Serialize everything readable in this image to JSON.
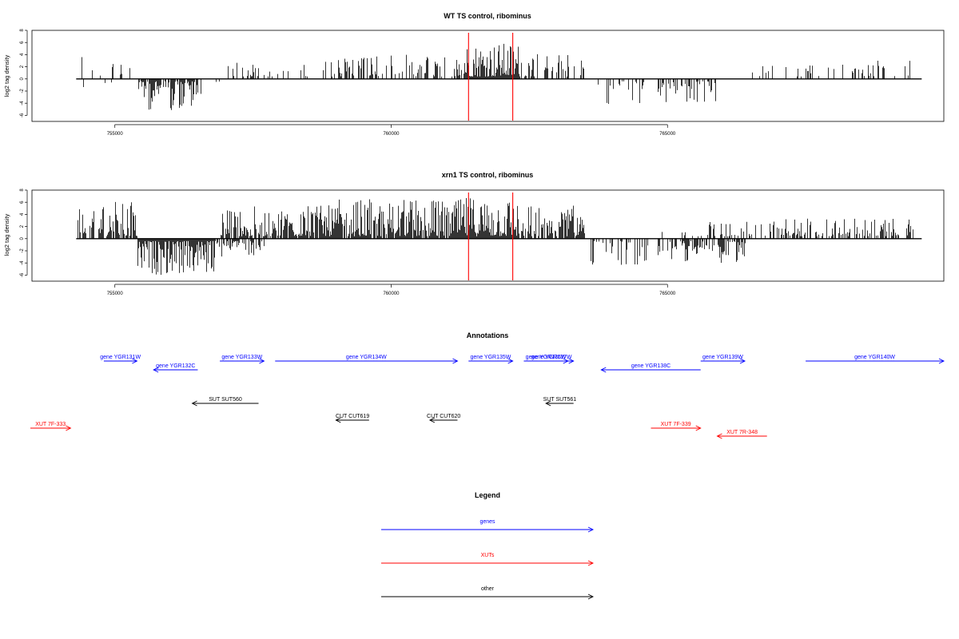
{
  "colors": {
    "gene": "#0000ff",
    "xut": "#ff0000",
    "other": "#000000",
    "marker": "#ff0000"
  },
  "chart_data": [
    {
      "type": "bar",
      "title": "WT TS control, ribominus",
      "ylabel": "log2 tag density",
      "xlim": [
        753500,
        770000
      ],
      "ylim": [
        -7,
        8
      ],
      "xticks": [
        755000,
        760000,
        765000
      ],
      "yticks": [
        8,
        6,
        4,
        2,
        0,
        -2,
        -4,
        -6
      ],
      "markers": [
        761400,
        762200
      ],
      "segments": [
        {
          "from": 754300,
          "to": 755300,
          "density": 0.18,
          "sign": 1,
          "max": 4.4
        },
        {
          "from": 754300,
          "to": 755300,
          "density": 0.06,
          "sign": -1,
          "max": 2.5
        },
        {
          "from": 755400,
          "to": 756500,
          "density": 0.8,
          "sign": -1,
          "max": 5.2
        },
        {
          "from": 756500,
          "to": 756900,
          "density": 0.15,
          "sign": -1,
          "max": 2.5
        },
        {
          "from": 756900,
          "to": 757600,
          "density": 0.3,
          "sign": 1,
          "max": 3.0
        },
        {
          "from": 757600,
          "to": 759000,
          "density": 0.2,
          "sign": 1,
          "max": 3.0
        },
        {
          "from": 759000,
          "to": 761300,
          "density": 0.45,
          "sign": 1,
          "max": 4.1
        },
        {
          "from": 761300,
          "to": 762300,
          "density": 1.0,
          "sign": 1,
          "max": 6.0
        },
        {
          "from": 762300,
          "to": 763500,
          "density": 0.4,
          "sign": 1,
          "max": 4.1
        },
        {
          "from": 763700,
          "to": 764600,
          "density": 0.35,
          "sign": -1,
          "max": 4.5
        },
        {
          "from": 764800,
          "to": 765900,
          "density": 0.45,
          "sign": -1,
          "max": 4.0
        },
        {
          "from": 766500,
          "to": 768300,
          "density": 0.12,
          "sign": 1,
          "max": 2.4
        },
        {
          "from": 768300,
          "to": 769400,
          "density": 0.3,
          "sign": 1,
          "max": 3.0
        }
      ]
    },
    {
      "type": "bar",
      "title": "xrn1 TS control, ribominus",
      "ylabel": "log2 tag density",
      "xlim": [
        753500,
        770000
      ],
      "ylim": [
        -7,
        8
      ],
      "xticks": [
        755000,
        760000,
        765000
      ],
      "yticks": [
        8,
        6,
        4,
        2,
        0,
        -2,
        -4,
        -6
      ],
      "markers": [
        761400,
        762200
      ],
      "segments": [
        {
          "from": 754300,
          "to": 755400,
          "density": 0.7,
          "sign": 1,
          "max": 6.2
        },
        {
          "from": 755400,
          "to": 756800,
          "density": 1.0,
          "sign": -1,
          "max": 6.0
        },
        {
          "from": 756800,
          "to": 757700,
          "density": 0.6,
          "sign": -1,
          "max": 3.0
        },
        {
          "from": 756900,
          "to": 759000,
          "density": 0.8,
          "sign": 1,
          "max": 5.5
        },
        {
          "from": 759000,
          "to": 761300,
          "density": 0.9,
          "sign": 1,
          "max": 6.5
        },
        {
          "from": 761300,
          "to": 762300,
          "density": 1.0,
          "sign": 1,
          "max": 7.0
        },
        {
          "from": 762300,
          "to": 763500,
          "density": 0.8,
          "sign": 1,
          "max": 5.5
        },
        {
          "from": 763600,
          "to": 764700,
          "density": 0.5,
          "sign": -1,
          "max": 4.5
        },
        {
          "from": 764800,
          "to": 766400,
          "density": 0.55,
          "sign": -1,
          "max": 4.0
        },
        {
          "from": 764800,
          "to": 767000,
          "density": 0.25,
          "sign": 1,
          "max": 3.0
        },
        {
          "from": 767000,
          "to": 769500,
          "density": 0.5,
          "sign": 1,
          "max": 3.5
        }
      ]
    }
  ],
  "annotations": {
    "title": "Annotations",
    "items": [
      {
        "label": "gene YGR131W",
        "start": 754800,
        "end": 755400,
        "row": 0,
        "type": "gene",
        "strand": "+"
      },
      {
        "label": "gene YGR132C",
        "start": 755700,
        "end": 756500,
        "row": 1,
        "type": "gene",
        "strand": "-"
      },
      {
        "label": "gene YGR133W",
        "start": 756900,
        "end": 757700,
        "row": 0,
        "type": "gene",
        "strand": "+"
      },
      {
        "label": "gene YGR134W",
        "start": 757900,
        "end": 761200,
        "row": 0,
        "type": "gene",
        "strand": "+"
      },
      {
        "label": "gene YGR135W",
        "start": 761400,
        "end": 762200,
        "row": 0,
        "type": "gene",
        "strand": "+"
      },
      {
        "label": "gene YGR136W",
        "start": 762400,
        "end": 763200,
        "row": 0,
        "type": "gene",
        "strand": "+"
      },
      {
        "label": "gene YGR137W",
        "start": 762500,
        "end": 763300,
        "row": 0,
        "type": "gene",
        "strand": "+"
      },
      {
        "label": "gene YGR138C",
        "start": 763800,
        "end": 765600,
        "row": 1,
        "type": "gene",
        "strand": "-"
      },
      {
        "label": "gene YGR139W",
        "start": 765600,
        "end": 766400,
        "row": 0,
        "type": "gene",
        "strand": "+"
      },
      {
        "label": "gene YGR140W",
        "start": 767500,
        "end": 770000,
        "row": 0,
        "type": "gene",
        "strand": "+"
      },
      {
        "label": "SUT SUT560",
        "start": 756400,
        "end": 757600,
        "row": 3,
        "type": "other",
        "strand": "-"
      },
      {
        "label": "SUT SUT561",
        "start": 762800,
        "end": 763300,
        "row": 3,
        "type": "other",
        "strand": "-"
      },
      {
        "label": "CUT CUT619",
        "start": 759000,
        "end": 759600,
        "row": 4,
        "type": "other",
        "strand": "-"
      },
      {
        "label": "CUT CUT620",
        "start": 760700,
        "end": 761200,
        "row": 4,
        "type": "other",
        "strand": "-"
      },
      {
        "label": "XUT 7F-333",
        "start": 753200,
        "end": 754200,
        "row": 5,
        "type": "xut",
        "strand": "+"
      },
      {
        "label": "XUT 7F-339",
        "start": 764700,
        "end": 765600,
        "row": 5,
        "type": "xut",
        "strand": "+"
      },
      {
        "label": "XUT 7R-348",
        "start": 765900,
        "end": 766800,
        "row": 6,
        "type": "xut",
        "strand": "-"
      }
    ]
  },
  "legend": {
    "title": "Legend",
    "items": [
      {
        "label": "genes",
        "type": "gene"
      },
      {
        "label": "XUTs",
        "type": "xut"
      },
      {
        "label": "other",
        "type": "other"
      }
    ]
  }
}
